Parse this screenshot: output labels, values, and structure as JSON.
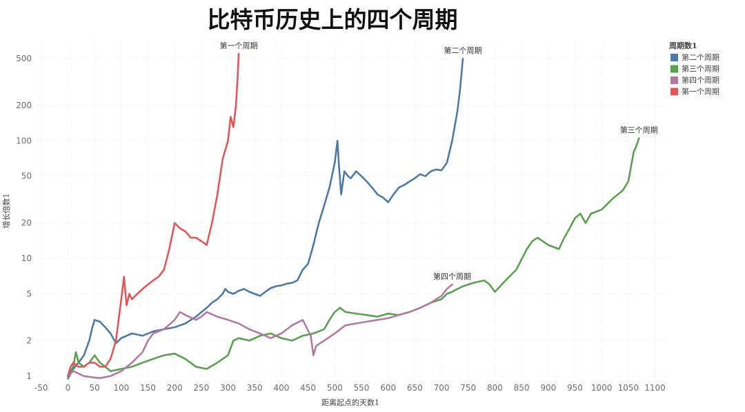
{
  "chart_data": {
    "type": "line",
    "title": "比特币历史上的四个周期",
    "xlabel": "距离起点的天数1",
    "ylabel": "增长倍数1",
    "xlim": [
      -60,
      1120
    ],
    "ylim": [
      0.92,
      700
    ],
    "yscale": "log",
    "x_ticks": [
      -50,
      0,
      50,
      100,
      150,
      200,
      250,
      300,
      350,
      400,
      450,
      500,
      550,
      600,
      650,
      700,
      750,
      800,
      850,
      900,
      950,
      1000,
      1050,
      1100
    ],
    "y_ticks": [
      1,
      2,
      5,
      10,
      20,
      50,
      100,
      200,
      500
    ],
    "grid": true,
    "legend": {
      "title": "周期数1",
      "position": "top-right",
      "entries": [
        "第二个周期",
        "第三个周期",
        "第四个周期",
        "第一个周期"
      ]
    },
    "series": [
      {
        "name": "第二个周期",
        "color": "#4e79a7",
        "points": [
          [
            0,
            0.95
          ],
          [
            10,
            1.15
          ],
          [
            20,
            1.3
          ],
          [
            30,
            1.5
          ],
          [
            40,
            2.0
          ],
          [
            45,
            2.5
          ],
          [
            50,
            3.0
          ],
          [
            60,
            2.9
          ],
          [
            70,
            2.6
          ],
          [
            80,
            2.3
          ],
          [
            90,
            1.9
          ],
          [
            100,
            2.1
          ],
          [
            110,
            2.2
          ],
          [
            120,
            2.3
          ],
          [
            140,
            2.2
          ],
          [
            160,
            2.4
          ],
          [
            180,
            2.5
          ],
          [
            200,
            2.6
          ],
          [
            220,
            2.8
          ],
          [
            240,
            3.2
          ],
          [
            260,
            3.8
          ],
          [
            270,
            4.2
          ],
          [
            280,
            4.5
          ],
          [
            290,
            5.0
          ],
          [
            295,
            5.5
          ],
          [
            300,
            5.2
          ],
          [
            310,
            5.0
          ],
          [
            320,
            5.3
          ],
          [
            330,
            5.5
          ],
          [
            340,
            5.2
          ],
          [
            350,
            5.0
          ],
          [
            360,
            4.8
          ],
          [
            370,
            5.2
          ],
          [
            380,
            5.6
          ],
          [
            390,
            5.8
          ],
          [
            400,
            5.9
          ],
          [
            410,
            6.1
          ],
          [
            420,
            6.2
          ],
          [
            430,
            6.5
          ],
          [
            440,
            8.0
          ],
          [
            450,
            9.0
          ],
          [
            460,
            13.0
          ],
          [
            470,
            20.0
          ],
          [
            480,
            28.0
          ],
          [
            490,
            40.0
          ],
          [
            500,
            65.0
          ],
          [
            505,
            100.0
          ],
          [
            508,
            60.0
          ],
          [
            512,
            35.0
          ],
          [
            518,
            55.0
          ],
          [
            525,
            50.0
          ],
          [
            530,
            48.0
          ],
          [
            540,
            55.0
          ],
          [
            550,
            50.0
          ],
          [
            560,
            45.0
          ],
          [
            570,
            40.0
          ],
          [
            580,
            35.0
          ],
          [
            590,
            33.0
          ],
          [
            600,
            30.0
          ],
          [
            610,
            35.0
          ],
          [
            620,
            40.0
          ],
          [
            630,
            42.0
          ],
          [
            640,
            45.0
          ],
          [
            650,
            48.0
          ],
          [
            660,
            52.0
          ],
          [
            670,
            50.0
          ],
          [
            680,
            55.0
          ],
          [
            690,
            57.0
          ],
          [
            700,
            56.0
          ],
          [
            710,
            65.0
          ],
          [
            720,
            100.0
          ],
          [
            730,
            180.0
          ],
          [
            735,
            280.0
          ],
          [
            740,
            500.0
          ]
        ]
      },
      {
        "name": "第三个周期",
        "color": "#59a14f",
        "points": [
          [
            0,
            1.0
          ],
          [
            10,
            1.2
          ],
          [
            15,
            1.6
          ],
          [
            20,
            1.3
          ],
          [
            30,
            1.2
          ],
          [
            40,
            1.3
          ],
          [
            50,
            1.5
          ],
          [
            60,
            1.3
          ],
          [
            70,
            1.2
          ],
          [
            80,
            1.1
          ],
          [
            100,
            1.15
          ],
          [
            120,
            1.2
          ],
          [
            140,
            1.3
          ],
          [
            160,
            1.4
          ],
          [
            180,
            1.5
          ],
          [
            200,
            1.55
          ],
          [
            220,
            1.4
          ],
          [
            240,
            1.2
          ],
          [
            260,
            1.15
          ],
          [
            280,
            1.3
          ],
          [
            300,
            1.5
          ],
          [
            310,
            2.0
          ],
          [
            320,
            2.1
          ],
          [
            340,
            2.0
          ],
          [
            360,
            2.2
          ],
          [
            380,
            2.3
          ],
          [
            400,
            2.1
          ],
          [
            420,
            2.0
          ],
          [
            440,
            2.2
          ],
          [
            460,
            2.3
          ],
          [
            480,
            2.5
          ],
          [
            490,
            3.0
          ],
          [
            500,
            3.5
          ],
          [
            510,
            3.8
          ],
          [
            520,
            3.5
          ],
          [
            540,
            3.4
          ],
          [
            560,
            3.3
          ],
          [
            580,
            3.2
          ],
          [
            600,
            3.4
          ],
          [
            620,
            3.3
          ],
          [
            640,
            3.5
          ],
          [
            660,
            3.8
          ],
          [
            680,
            4.2
          ],
          [
            700,
            4.5
          ],
          [
            710,
            5.0
          ],
          [
            720,
            5.2
          ],
          [
            730,
            5.5
          ],
          [
            740,
            5.8
          ],
          [
            760,
            6.2
          ],
          [
            780,
            6.5
          ],
          [
            790,
            6.0
          ],
          [
            800,
            5.2
          ],
          [
            810,
            5.8
          ],
          [
            820,
            6.5
          ],
          [
            840,
            8.0
          ],
          [
            860,
            12.0
          ],
          [
            870,
            14.0
          ],
          [
            880,
            15.0
          ],
          [
            900,
            13.0
          ],
          [
            920,
            12.0
          ],
          [
            930,
            15.0
          ],
          [
            940,
            18.0
          ],
          [
            950,
            22.0
          ],
          [
            960,
            24.0
          ],
          [
            970,
            20.0
          ],
          [
            980,
            24.0
          ],
          [
            1000,
            26.0
          ],
          [
            1020,
            32.0
          ],
          [
            1040,
            38.0
          ],
          [
            1050,
            45.0
          ],
          [
            1055,
            60.0
          ],
          [
            1060,
            80.0
          ],
          [
            1065,
            90.0
          ],
          [
            1070,
            105.0
          ]
        ]
      },
      {
        "name": "第四个周期",
        "color": "#b07aa1",
        "points": [
          [
            0,
            1.0
          ],
          [
            10,
            1.1
          ],
          [
            20,
            1.05
          ],
          [
            30,
            1.0
          ],
          [
            50,
            0.97
          ],
          [
            60,
            0.96
          ],
          [
            80,
            1.0
          ],
          [
            100,
            1.1
          ],
          [
            120,
            1.3
          ],
          [
            140,
            1.6
          ],
          [
            150,
            2.0
          ],
          [
            160,
            2.3
          ],
          [
            180,
            2.5
          ],
          [
            200,
            3.0
          ],
          [
            210,
            3.5
          ],
          [
            220,
            3.3
          ],
          [
            240,
            3.0
          ],
          [
            250,
            3.2
          ],
          [
            260,
            3.5
          ],
          [
            280,
            3.2
          ],
          [
            300,
            3.0
          ],
          [
            320,
            2.8
          ],
          [
            340,
            2.5
          ],
          [
            360,
            2.3
          ],
          [
            380,
            2.1
          ],
          [
            400,
            2.3
          ],
          [
            420,
            2.7
          ],
          [
            440,
            3.0
          ],
          [
            455,
            2.2
          ],
          [
            460,
            1.5
          ],
          [
            465,
            1.8
          ],
          [
            480,
            2.0
          ],
          [
            500,
            2.3
          ],
          [
            520,
            2.7
          ],
          [
            540,
            2.8
          ],
          [
            560,
            2.9
          ],
          [
            580,
            3.0
          ],
          [
            600,
            3.1
          ],
          [
            620,
            3.3
          ],
          [
            640,
            3.5
          ],
          [
            660,
            3.8
          ],
          [
            680,
            4.2
          ],
          [
            700,
            4.8
          ],
          [
            710,
            5.5
          ],
          [
            720,
            6.0
          ]
        ]
      },
      {
        "name": "第一个周期",
        "color": "#e15759",
        "points": [
          [
            0,
            1.0
          ],
          [
            5,
            1.2
          ],
          [
            10,
            1.3
          ],
          [
            20,
            1.2
          ],
          [
            30,
            1.2
          ],
          [
            40,
            1.3
          ],
          [
            50,
            1.3
          ],
          [
            60,
            1.2
          ],
          [
            70,
            1.2
          ],
          [
            80,
            1.4
          ],
          [
            90,
            2.0
          ],
          [
            95,
            3.0
          ],
          [
            100,
            4.5
          ],
          [
            105,
            7.0
          ],
          [
            110,
            4.0
          ],
          [
            115,
            5.0
          ],
          [
            120,
            4.5
          ],
          [
            130,
            5.0
          ],
          [
            140,
            5.5
          ],
          [
            150,
            6.0
          ],
          [
            160,
            6.5
          ],
          [
            170,
            7.0
          ],
          [
            180,
            8.0
          ],
          [
            190,
            12.0
          ],
          [
            200,
            20.0
          ],
          [
            210,
            18.0
          ],
          [
            220,
            17.0
          ],
          [
            230,
            15.0
          ],
          [
            240,
            15.0
          ],
          [
            250,
            14.0
          ],
          [
            260,
            13.0
          ],
          [
            270,
            20.0
          ],
          [
            280,
            35.0
          ],
          [
            290,
            70.0
          ],
          [
            300,
            100.0
          ],
          [
            305,
            160.0
          ],
          [
            310,
            130.0
          ],
          [
            315,
            200.0
          ],
          [
            318,
            350.0
          ],
          [
            320,
            550.0
          ]
        ]
      }
    ],
    "annotations": [
      {
        "text": "第一个周期",
        "x": 320,
        "y": 550
      },
      {
        "text": "第二个周期",
        "x": 740,
        "y": 500
      },
      {
        "text": "第三个周期",
        "x": 1070,
        "y": 105
      },
      {
        "text": "第四个周期",
        "x": 720,
        "y": 6.0
      }
    ]
  }
}
